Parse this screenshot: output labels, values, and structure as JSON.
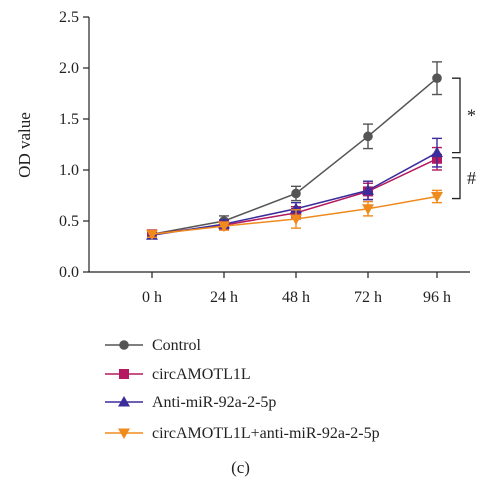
{
  "chart_data": {
    "type": "line",
    "x": [
      "0 h",
      "24 h",
      "48 h",
      "72 h",
      "96 h"
    ],
    "ylabel": "OD value",
    "xlabel": "",
    "ylim": [
      0,
      2.5
    ],
    "yticks": [
      "0.0",
      "0.5",
      "1.0",
      "1.5",
      "2.0",
      "2.5"
    ],
    "grid": false,
    "legend_position": "bottom",
    "series": [
      {
        "name": "Control",
        "color": "#555555",
        "marker": "circle",
        "values": [
          0.37,
          0.5,
          0.77,
          1.33,
          1.9
        ],
        "errors": [
          0.03,
          0.05,
          0.07,
          0.12,
          0.16
        ]
      },
      {
        "name": "circAMOTL1L",
        "color": "#b5195f",
        "marker": "square",
        "values": [
          0.37,
          0.46,
          0.58,
          0.79,
          1.11
        ],
        "errors": [
          0.03,
          0.04,
          0.06,
          0.08,
          0.11
        ]
      },
      {
        "name": "Anti-miR-92a-2-5p",
        "color": "#3a2c9c",
        "marker": "triangle-up",
        "values": [
          0.36,
          0.47,
          0.62,
          0.8,
          1.17
        ],
        "errors": [
          0.03,
          0.04,
          0.06,
          0.09,
          0.14
        ]
      },
      {
        "name": "circAMOTL1L+anti-miR-92a-2-5p",
        "color": "#f08a1d",
        "marker": "triangle-down",
        "values": [
          0.37,
          0.45,
          0.52,
          0.62,
          0.74
        ],
        "errors": [
          0.03,
          0.04,
          0.09,
          0.07,
          0.06
        ]
      }
    ],
    "annotations": [
      {
        "symbol": "*",
        "y_from": 1.9,
        "y_to": 1.17
      },
      {
        "symbol": "#",
        "y_from": 1.12,
        "y_to": 0.72
      }
    ]
  },
  "panel_label": "(c)"
}
